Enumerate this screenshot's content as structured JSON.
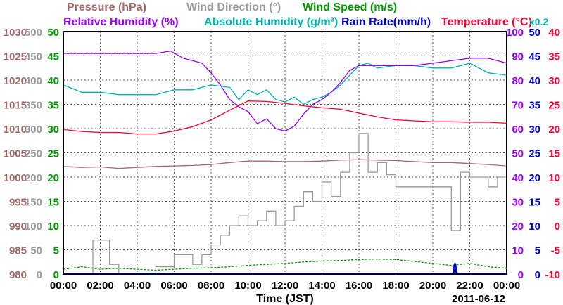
{
  "chart_data": {
    "type": "line",
    "legend": {
      "row1": [
        {
          "text": "Pressure (hPa)",
          "color": "#a06a6a"
        },
        {
          "text": "Wind Direction (°)",
          "color": "#9a9a9a"
        },
        {
          "text": "Wind Speed (m/s)",
          "color": "#009900"
        }
      ],
      "row2": [
        {
          "text": "Relative Humidity (%)",
          "color": "#9900ff"
        },
        {
          "text": "Absolute Humidity (g/m³)",
          "color": "#00b3b3"
        },
        {
          "text": "Rain Rate(mm/h)",
          "color": "#0000cc"
        },
        {
          "text": "Temperature (°C)",
          "color": "#ff0033"
        }
      ],
      "note": {
        "text": "x0.2",
        "color": "#00b3b3"
      }
    },
    "xlabel": "Time (JST)",
    "date": "2011-06-12",
    "x_ticks": [
      "00:00",
      "02:00",
      "04:00",
      "06:00",
      "08:00",
      "10:00",
      "12:00",
      "14:00",
      "16:00",
      "18:00",
      "20:00",
      "22:00",
      "00:00"
    ],
    "x_range_hours": [
      0,
      24
    ],
    "axes": {
      "pressure": {
        "color": "#a06a6a",
        "range": [
          980,
          1030
        ],
        "ticks": [
          "1030",
          "1025",
          "1020",
          "1015",
          "1010",
          "1005",
          "1000",
          "995",
          "990",
          "985",
          "980"
        ]
      },
      "wind_direction": {
        "color": "#9a9a9a",
        "range": [
          0,
          500
        ],
        "ticks": [
          "500",
          "450",
          "400",
          "350",
          "300",
          "250",
          "200",
          "150",
          "100",
          "50",
          "0"
        ]
      },
      "wind_speed": {
        "color": "#009900",
        "range": [
          0,
          50
        ],
        "ticks": [
          "50",
          "45",
          "40",
          "35",
          "30",
          "25",
          "20",
          "15",
          "10",
          "5",
          "0"
        ]
      },
      "humidity": {
        "color": "#9900ff",
        "range": [
          0,
          100
        ],
        "ticks": [
          "100",
          "90",
          "80",
          "70",
          "60",
          "50",
          "40",
          "30",
          "20",
          "10",
          "0"
        ]
      },
      "rain": {
        "color": "#0000cc",
        "range": [
          0,
          50
        ],
        "ticks": [
          "50",
          "45",
          "40",
          "35",
          "30",
          "25",
          "20",
          "15",
          "10",
          "5",
          "0"
        ]
      },
      "temperature": {
        "color": "#ff0033",
        "range": [
          -10,
          40
        ],
        "ticks": [
          "40",
          "35",
          "30",
          "25",
          "20",
          "15",
          "10",
          "5",
          "0",
          "-5",
          "-10"
        ]
      }
    },
    "series": [
      {
        "name": "Pressure (hPa)",
        "axis": "pressure",
        "color": "#a06a6a",
        "points": [
          [
            0,
            1002.2
          ],
          [
            1,
            1002.0
          ],
          [
            2,
            1002.1
          ],
          [
            3,
            1001.8
          ],
          [
            4,
            1002.0
          ],
          [
            5,
            1002.2
          ],
          [
            6,
            1002.3
          ],
          [
            7,
            1002.4
          ],
          [
            8,
            1002.6
          ],
          [
            9,
            1003.0
          ],
          [
            10,
            1003.3
          ],
          [
            11,
            1003.3
          ],
          [
            12,
            1003.2
          ],
          [
            13,
            1003.2
          ],
          [
            14,
            1003.3
          ],
          [
            15,
            1003.5
          ],
          [
            16,
            1003.6
          ],
          [
            17,
            1003.5
          ],
          [
            18,
            1003.4
          ],
          [
            19,
            1003.2
          ],
          [
            20,
            1003.0
          ],
          [
            21,
            1003.0
          ],
          [
            22,
            1002.8
          ],
          [
            23,
            1002.6
          ],
          [
            24,
            1002.3
          ]
        ]
      },
      {
        "name": "Relative Humidity (%)",
        "axis": "humidity",
        "color": "#9900ff",
        "points": [
          [
            0,
            91
          ],
          [
            1,
            91
          ],
          [
            2,
            91
          ],
          [
            3,
            91
          ],
          [
            4,
            91
          ],
          [
            5,
            91
          ],
          [
            5.8,
            92
          ],
          [
            6.5,
            89
          ],
          [
            7,
            88
          ],
          [
            7.5,
            87
          ],
          [
            8,
            83
          ],
          [
            8.5,
            78
          ],
          [
            9,
            72
          ],
          [
            9.5,
            69
          ],
          [
            10,
            67
          ],
          [
            10.5,
            62
          ],
          [
            11,
            64
          ],
          [
            11.5,
            60
          ],
          [
            12,
            59
          ],
          [
            12.5,
            61
          ],
          [
            13,
            66
          ],
          [
            13.5,
            70
          ],
          [
            14,
            72
          ],
          [
            14.5,
            75
          ],
          [
            15,
            79
          ],
          [
            15.5,
            84
          ],
          [
            16,
            86
          ],
          [
            17,
            86
          ],
          [
            18,
            86
          ],
          [
            19,
            86
          ],
          [
            20,
            87
          ],
          [
            21,
            88
          ],
          [
            22,
            89
          ],
          [
            23,
            89
          ],
          [
            24,
            87
          ]
        ]
      },
      {
        "name": "Absolute Humidity (g/m³)",
        "axis": "humidity",
        "color": "#00b3b3",
        "points": [
          [
            0,
            78
          ],
          [
            1,
            75
          ],
          [
            2,
            75
          ],
          [
            3,
            74
          ],
          [
            4,
            74
          ],
          [
            5,
            74
          ],
          [
            6,
            76
          ],
          [
            7,
            76
          ],
          [
            8,
            78
          ],
          [
            9,
            77
          ],
          [
            9.5,
            72
          ],
          [
            10,
            76
          ],
          [
            10.5,
            74
          ],
          [
            11,
            76
          ],
          [
            11.5,
            72
          ],
          [
            12,
            71
          ],
          [
            12.5,
            73
          ],
          [
            13,
            70
          ],
          [
            13.5,
            72
          ],
          [
            14,
            73
          ],
          [
            14.5,
            75
          ],
          [
            15,
            78
          ],
          [
            15.5,
            82
          ],
          [
            16,
            86
          ],
          [
            16.5,
            87
          ],
          [
            17,
            85
          ],
          [
            18,
            86
          ],
          [
            19,
            86
          ],
          [
            20,
            85
          ],
          [
            21,
            85
          ],
          [
            22,
            87
          ],
          [
            23,
            83
          ],
          [
            24,
            82
          ]
        ]
      },
      {
        "name": "Temperature (°C)",
        "axis": "temperature",
        "color": "#ff0033",
        "points": [
          [
            0,
            19.8
          ],
          [
            1,
            19.4
          ],
          [
            2,
            19.2
          ],
          [
            3,
            19.2
          ],
          [
            4,
            18.9
          ],
          [
            5,
            18.9
          ],
          [
            6,
            19.5
          ],
          [
            7,
            20.4
          ],
          [
            8,
            21.8
          ],
          [
            9,
            23.8
          ],
          [
            10,
            25.7
          ],
          [
            11,
            25.6
          ],
          [
            12,
            25.2
          ],
          [
            13,
            24.7
          ],
          [
            14,
            24.3
          ],
          [
            15,
            24.0
          ],
          [
            16,
            23.2
          ],
          [
            17,
            22.4
          ],
          [
            18,
            21.8
          ],
          [
            19,
            21.6
          ],
          [
            20,
            21.4
          ],
          [
            21,
            21.4
          ],
          [
            22,
            21.3
          ],
          [
            23,
            21.3
          ],
          [
            24,
            21.1
          ]
        ]
      },
      {
        "name": "Wind Direction (°)",
        "axis": "wind_direction",
        "color": "#9a9a9a",
        "points": [
          [
            0,
            0
          ],
          [
            1.6,
            0
          ],
          [
            1.6,
            70
          ],
          [
            2.5,
            70
          ],
          [
            2.5,
            20
          ],
          [
            3,
            20
          ],
          [
            3,
            0
          ],
          [
            5,
            0
          ],
          [
            5,
            15
          ],
          [
            6,
            15
          ],
          [
            6,
            40
          ],
          [
            7,
            40
          ],
          [
            7,
            20
          ],
          [
            7.5,
            20
          ],
          [
            7.5,
            40
          ],
          [
            8,
            40
          ],
          [
            8,
            60
          ],
          [
            8.5,
            60
          ],
          [
            8.5,
            80
          ],
          [
            9,
            80
          ],
          [
            9,
            100
          ],
          [
            9.5,
            100
          ],
          [
            9.5,
            120
          ],
          [
            10,
            120
          ],
          [
            10,
            100
          ],
          [
            10.5,
            100
          ],
          [
            10.5,
            110
          ],
          [
            11,
            110
          ],
          [
            11,
            130
          ],
          [
            11.5,
            130
          ],
          [
            11.5,
            100
          ],
          [
            12,
            100
          ],
          [
            12,
            110
          ],
          [
            12.5,
            110
          ],
          [
            12.5,
            140
          ],
          [
            13,
            140
          ],
          [
            13,
            170
          ],
          [
            13.5,
            170
          ],
          [
            13.5,
            150
          ],
          [
            14,
            150
          ],
          [
            14,
            190
          ],
          [
            14.5,
            190
          ],
          [
            14.5,
            160
          ],
          [
            15,
            160
          ],
          [
            15,
            210
          ],
          [
            15.5,
            210
          ],
          [
            15.5,
            250
          ],
          [
            16,
            250
          ],
          [
            16,
            290
          ],
          [
            16.5,
            290
          ],
          [
            16.5,
            210
          ],
          [
            17,
            210
          ],
          [
            17,
            230
          ],
          [
            17.5,
            230
          ],
          [
            17.5,
            205
          ],
          [
            18,
            205
          ],
          [
            18,
            180
          ],
          [
            20,
            180
          ],
          [
            20,
            180
          ],
          [
            21,
            180
          ],
          [
            21,
            90
          ],
          [
            21.5,
            90
          ],
          [
            21.5,
            210
          ],
          [
            22,
            210
          ],
          [
            22,
            200
          ],
          [
            23,
            200
          ],
          [
            23,
            180
          ],
          [
            23.5,
            180
          ],
          [
            23.5,
            200
          ],
          [
            24,
            200
          ]
        ]
      },
      {
        "name": "Wind Speed (m/s)",
        "axis": "wind_speed",
        "color": "#009900",
        "points": [
          [
            0,
            1
          ],
          [
            1,
            1.5
          ],
          [
            2,
            1
          ],
          [
            3,
            1.2
          ],
          [
            4,
            1
          ],
          [
            5,
            0.8
          ],
          [
            6,
            1
          ],
          [
            7,
            1.2
          ],
          [
            8,
            1.3
          ],
          [
            9,
            1.5
          ],
          [
            10,
            1.8
          ],
          [
            11,
            2
          ],
          [
            12,
            2.2
          ],
          [
            13,
            2.5
          ],
          [
            14,
            2.7
          ],
          [
            15,
            2.8
          ],
          [
            16,
            3
          ],
          [
            17,
            3.1
          ],
          [
            18,
            3
          ],
          [
            19,
            2.6
          ],
          [
            20,
            2.2
          ],
          [
            21,
            1.8
          ],
          [
            22,
            2.2
          ],
          [
            23,
            1.5
          ],
          [
            24,
            1.2
          ]
        ]
      },
      {
        "name": "Rain Rate(mm/h)",
        "axis": "rain",
        "color": "#0000cc",
        "points": [
          [
            0,
            0
          ],
          [
            21.1,
            0
          ],
          [
            21.2,
            2.2
          ],
          [
            21.3,
            0
          ],
          [
            24,
            0
          ]
        ]
      }
    ],
    "grid": true
  }
}
